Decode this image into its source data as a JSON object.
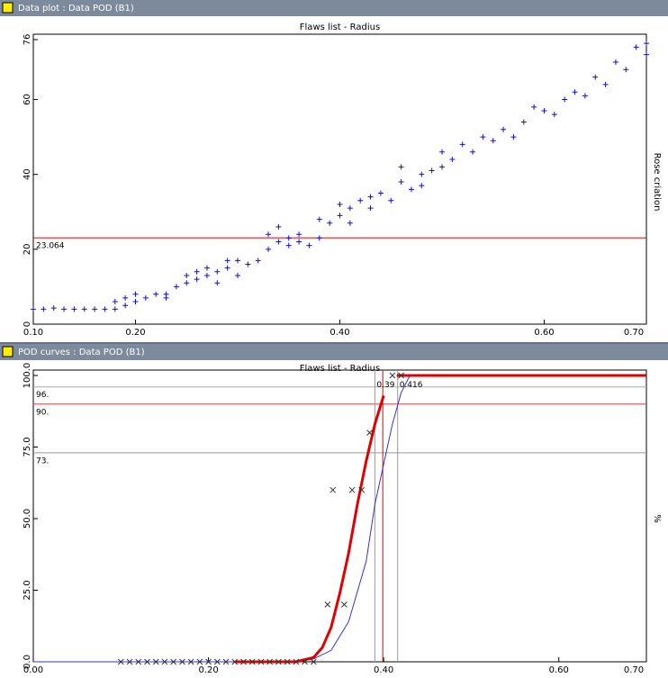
{
  "windows": [
    "Data plot : Data POD (B1)",
    "POD curves : Data POD (B1)"
  ],
  "chart_data": [
    {
      "type": "scatter",
      "title": "Flaws list - Radius",
      "y_label": "Rose criation",
      "xlim": [
        0.1,
        0.7
      ],
      "ylim": [
        0,
        76
      ],
      "xticks": [
        {
          "value": 0.1,
          "label": "0.10"
        },
        {
          "value": 0.2,
          "label": "0.20"
        },
        {
          "value": 0.4,
          "label": "0.40"
        },
        {
          "value": 0.6,
          "label": "0.60"
        },
        {
          "value": 0.7,
          "label": "0.70"
        }
      ],
      "yticks": [
        0,
        20,
        40,
        60,
        76
      ],
      "hlines": [
        {
          "value": 23.064,
          "color": "#e00000"
        }
      ],
      "series": [
        {
          "color": "#1010d0",
          "marker": "+",
          "x": [
            0.1,
            0.11,
            0.12,
            0.13,
            0.14,
            0.15,
            0.16,
            0.17,
            0.18,
            0.18,
            0.19,
            0.19,
            0.2,
            0.2,
            0.21,
            0.22,
            0.23,
            0.23,
            0.24,
            0.25,
            0.25,
            0.26,
            0.26,
            0.27,
            0.27,
            0.28,
            0.28,
            0.29,
            0.29,
            0.3,
            0.3,
            0.31,
            0.32,
            0.33,
            0.33,
            0.34,
            0.34,
            0.35,
            0.35,
            0.36,
            0.36,
            0.37,
            0.38,
            0.38,
            0.39,
            0.4,
            0.4,
            0.41,
            0.41,
            0.42,
            0.43,
            0.43,
            0.44,
            0.45,
            0.46,
            0.46,
            0.47,
            0.48,
            0.48,
            0.49,
            0.5,
            0.5,
            0.51,
            0.52,
            0.53,
            0.54,
            0.55,
            0.56,
            0.57,
            0.58,
            0.59,
            0.6,
            0.61,
            0.62,
            0.63,
            0.64,
            0.65,
            0.66,
            0.67,
            0.68,
            0.69,
            0.7,
            0.7
          ],
          "values": [
            4,
            4,
            4.3,
            4,
            4,
            4,
            4,
            4,
            4,
            6,
            5,
            7,
            6,
            8,
            7,
            8,
            7,
            8,
            10,
            11,
            13,
            12,
            14,
            13,
            15,
            11,
            14,
            17,
            15,
            13,
            17,
            16,
            17,
            20,
            24,
            22,
            26,
            21,
            23,
            24,
            22,
            21,
            23,
            28,
            27,
            29,
            32,
            31,
            27,
            33,
            34,
            31,
            35,
            33,
            42,
            38,
            36,
            40,
            37,
            41,
            42,
            46,
            44,
            48,
            46,
            50,
            49,
            52,
            50,
            54,
            58,
            57,
            56,
            60,
            62,
            61,
            66,
            64,
            70,
            68,
            74,
            75,
            72
          ]
        }
      ]
    },
    {
      "type": "line",
      "title": "Flaws list - Radius",
      "y_label": "%",
      "xlim": [
        0,
        0.7
      ],
      "ylim": [
        0,
        100
      ],
      "xticks": [
        {
          "value": 0,
          "label": "0.00"
        },
        {
          "value": 0.2,
          "label": "0.20"
        },
        {
          "value": 0.4,
          "label": "0.40"
        },
        {
          "value": 0.6,
          "label": "0.60"
        },
        {
          "value": 0.7,
          "label": "0.70"
        }
      ],
      "yticks": [
        {
          "value": 0,
          "label": "0.0"
        },
        {
          "value": 25,
          "label": "25.0"
        },
        {
          "value": 50,
          "label": "50.0"
        },
        {
          "value": 75,
          "label": "75.0"
        },
        {
          "value": 100,
          "label": "100.0"
        }
      ],
      "hlines": [
        {
          "value": 96,
          "label": "96.",
          "color": "#aaaaaa"
        },
        {
          "value": 90,
          "label": "90.",
          "color": "#e04040"
        },
        {
          "value": 73,
          "label": "73.",
          "color": "#999999"
        }
      ],
      "vlines": [
        {
          "value": 0.39,
          "color": "#999999"
        },
        {
          "value": 0.416,
          "color": "#999999"
        },
        {
          "value": 0.399,
          "color": "#e00000"
        }
      ],
      "series": [
        {
          "color": "#3030e0",
          "width": 1,
          "x": [
            0,
            0.3,
            0.32,
            0.34,
            0.36,
            0.38,
            0.39,
            0.4,
            0.41,
            0.42,
            0.43,
            0.7
          ],
          "values": [
            0,
            0,
            1,
            4,
            14,
            35,
            55,
            69,
            83,
            94,
            100,
            100
          ]
        },
        {
          "color": "#e00000",
          "width": 3,
          "x": [
            0.23,
            0.3,
            0.32,
            0.33,
            0.34,
            0.35,
            0.36,
            0.37,
            0.38,
            0.39,
            0.4,
            0.41,
            0.415,
            0.7
          ],
          "values": [
            0,
            0,
            1.5,
            5,
            12,
            24,
            38,
            55,
            70,
            83,
            93,
            null,
            100,
            100
          ]
        },
        {
          "color": "#333333",
          "marker": "x",
          "x": [
            0.1,
            0.11,
            0.12,
            0.13,
            0.14,
            0.15,
            0.16,
            0.17,
            0.18,
            0.19,
            0.2,
            0.21,
            0.22,
            0.23,
            0.24,
            0.25,
            0.26,
            0.27,
            0.28,
            0.29,
            0.3,
            0.31,
            0.32,
            0.336,
            0.355,
            0.342,
            0.364,
            0.375,
            0.384,
            0.41,
            0.42
          ],
          "values": [
            0,
            0,
            0,
            0,
            0,
            0,
            0,
            0,
            0,
            0,
            0,
            0,
            0,
            0,
            0,
            0,
            0,
            0,
            0,
            0,
            0,
            0,
            0,
            20,
            20,
            60,
            60,
            60,
            80,
            100,
            100
          ]
        }
      ]
    }
  ]
}
